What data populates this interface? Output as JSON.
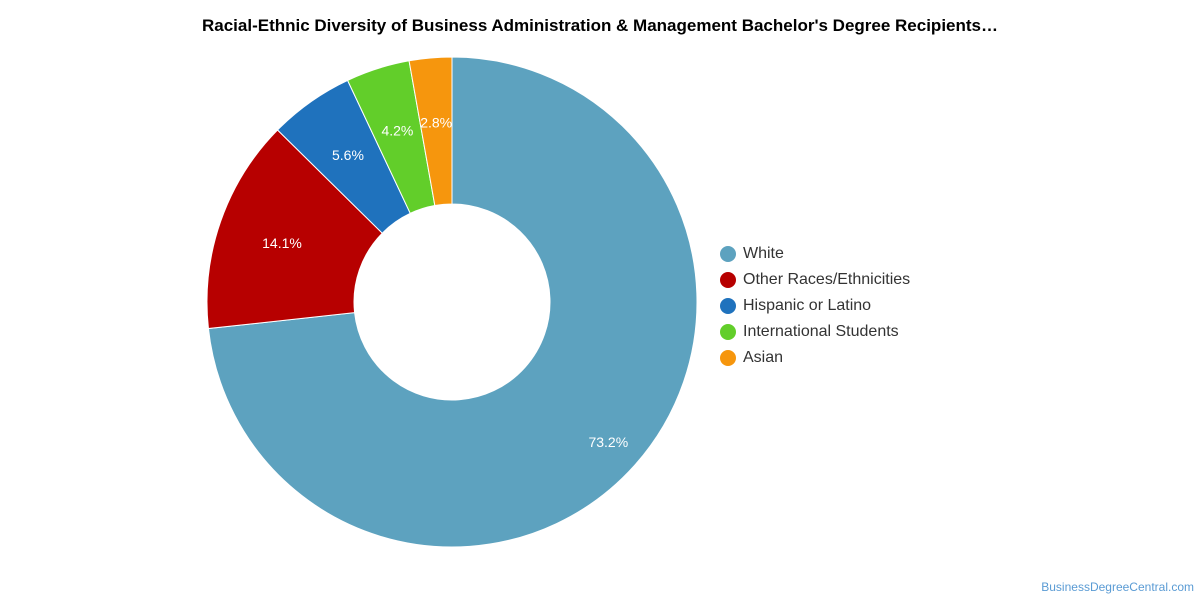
{
  "chart_data": {
    "type": "pie",
    "title": "Racial-Ethnic Diversity of Business Administration & Management Bachelor's Degree Recipients…",
    "slices": [
      {
        "name": "White",
        "value": 73.2,
        "label": "73.2%",
        "color": "#5da2bf"
      },
      {
        "name": "Other Races/Ethnicities",
        "value": 14.1,
        "label": "14.1%",
        "color": "#b70000"
      },
      {
        "name": "Hispanic or Latino",
        "value": 5.6,
        "label": "5.6%",
        "color": "#1f72bd"
      },
      {
        "name": "International Students",
        "value": 4.2,
        "label": "4.2%",
        "color": "#62ce2a"
      },
      {
        "name": "Asian",
        "value": 2.8,
        "label": "2.8%",
        "color": "#f6960d"
      }
    ],
    "legend_position": "right"
  },
  "footer": {
    "credit": "BusinessDegreeCentral.com"
  }
}
